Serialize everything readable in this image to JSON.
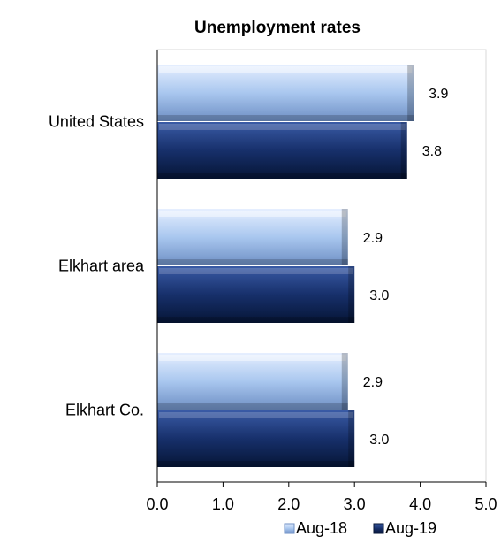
{
  "chart_data": {
    "type": "bar",
    "orientation": "horizontal",
    "title": "Unemployment rates",
    "categories": [
      "United States",
      "Elkhart area",
      "Elkhart Co."
    ],
    "series": [
      {
        "name": "Aug-18",
        "values": [
          3.9,
          2.9,
          2.9
        ],
        "color": "#a9c7ef"
      },
      {
        "name": "Aug-19",
        "values": [
          3.8,
          3.0,
          3.0
        ],
        "color": "#17306b"
      }
    ],
    "data_labels": [
      [
        "3.9",
        "2.9",
        "2.9"
      ],
      [
        "3.8",
        "3.0",
        "3.0"
      ]
    ],
    "xlim": [
      0,
      5
    ],
    "xticks": [
      "0.0",
      "1.0",
      "2.0",
      "3.0",
      "4.0",
      "5.0"
    ],
    "grid": false,
    "legend_position": "bottom-right"
  }
}
